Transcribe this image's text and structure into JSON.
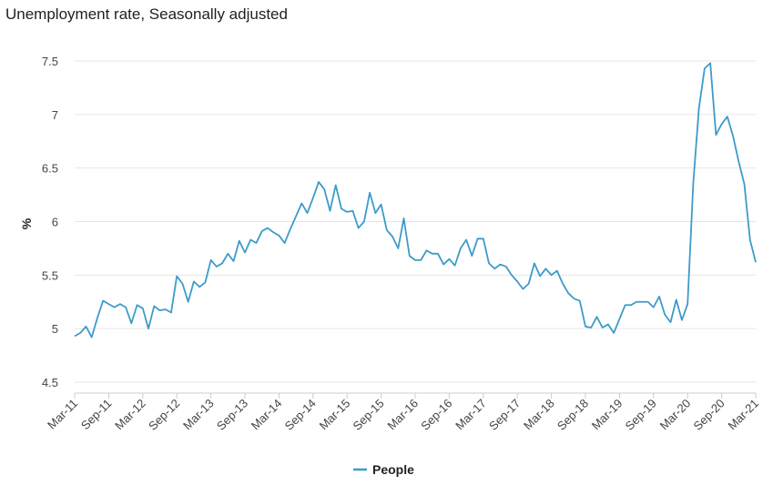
{
  "chart_data": {
    "type": "line",
    "title": "Unemployment rate, Seasonally adjusted",
    "xlabel": "",
    "ylabel": "%",
    "ylim": [
      4.5,
      7.5
    ],
    "yticks": [
      "4.5",
      "5",
      "5.5",
      "6",
      "6.5",
      "7",
      "7.5"
    ],
    "yticks_values": [
      4.5,
      5,
      5.5,
      6,
      6.5,
      7,
      7.5
    ],
    "x_start": "Mar-11",
    "xticks": [
      {
        "label": "Mar-11",
        "index": 0
      },
      {
        "label": "Sep-11",
        "index": 6
      },
      {
        "label": "Mar-12",
        "index": 12
      },
      {
        "label": "Sep-12",
        "index": 18
      },
      {
        "label": "Mar-13",
        "index": 24
      },
      {
        "label": "Sep-13",
        "index": 30
      },
      {
        "label": "Mar-14",
        "index": 36
      },
      {
        "label": "Sep-14",
        "index": 42
      },
      {
        "label": "Mar-15",
        "index": 48
      },
      {
        "label": "Sep-15",
        "index": 54
      },
      {
        "label": "Mar-16",
        "index": 60
      },
      {
        "label": "Sep-16",
        "index": 66
      },
      {
        "label": "Mar-17",
        "index": 72
      },
      {
        "label": "Sep-17",
        "index": 78
      },
      {
        "label": "Mar-18",
        "index": 84
      },
      {
        "label": "Sep-18",
        "index": 90
      },
      {
        "label": "Mar-19",
        "index": 96
      },
      {
        "label": "Sep-19",
        "index": 102
      },
      {
        "label": "Mar-20",
        "index": 108
      },
      {
        "label": "Sep-20",
        "index": 114
      },
      {
        "label": "Mar-21",
        "index": 120
      }
    ],
    "series": [
      {
        "name": "People",
        "color": "#3d9bc9",
        "values": [
          4.93,
          4.96,
          5.02,
          4.92,
          5.1,
          5.26,
          5.23,
          5.2,
          5.23,
          5.2,
          5.05,
          5.22,
          5.19,
          5.0,
          5.21,
          5.17,
          5.18,
          5.15,
          5.49,
          5.42,
          5.25,
          5.44,
          5.39,
          5.43,
          5.64,
          5.58,
          5.61,
          5.7,
          5.63,
          5.82,
          5.71,
          5.83,
          5.8,
          5.91,
          5.94,
          5.9,
          5.87,
          5.8,
          5.93,
          6.05,
          6.17,
          6.08,
          6.22,
          6.37,
          6.3,
          6.1,
          6.34,
          6.12,
          6.09,
          6.1,
          5.94,
          6.0,
          6.27,
          6.08,
          6.16,
          5.92,
          5.86,
          5.75,
          6.03,
          5.68,
          5.64,
          5.64,
          5.73,
          5.7,
          5.7,
          5.6,
          5.65,
          5.59,
          5.75,
          5.83,
          5.68,
          5.84,
          5.84,
          5.61,
          5.56,
          5.6,
          5.58,
          5.5,
          5.44,
          5.37,
          5.42,
          5.61,
          5.49,
          5.56,
          5.5,
          5.54,
          5.42,
          5.33,
          5.28,
          5.26,
          5.02,
          5.01,
          5.11,
          5.01,
          5.04,
          4.96,
          5.09,
          5.22,
          5.22,
          5.25,
          5.25,
          5.25,
          5.2,
          5.3,
          5.13,
          5.06,
          5.27,
          5.08,
          5.23,
          6.36,
          7.06,
          7.43,
          7.48,
          6.81,
          6.91,
          6.98,
          6.8,
          6.56,
          6.35,
          5.83,
          5.62
        ]
      }
    ],
    "legend": {
      "position": "bottom-center",
      "entries": [
        "People"
      ]
    },
    "grid": true
  },
  "colors": {
    "line": "#3d9bc9",
    "grid": "#e6e6e6",
    "axis": "#cccccc"
  }
}
